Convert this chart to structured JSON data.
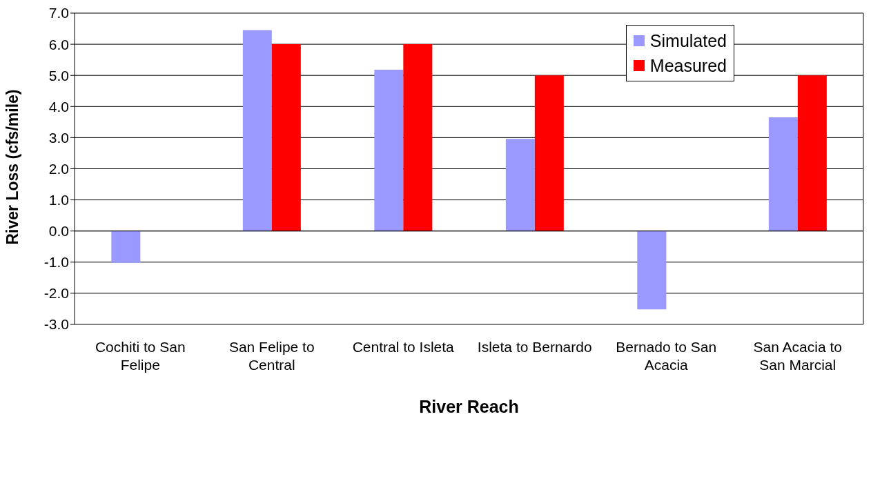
{
  "chart_data": {
    "type": "bar",
    "xlabel": "River Reach",
    "ylabel": "River Loss (cfs/mile)",
    "categories": [
      "Cochiti to San Felipe",
      "San Felipe to Central",
      "Central to Isleta",
      "Isleta to Bernardo",
      "Bernado to San Acacia",
      "San Acacia to San Marcial"
    ],
    "series": [
      {
        "name": "Simulated",
        "color": "#9999ff",
        "values": [
          -1.02,
          6.45,
          5.18,
          2.96,
          -2.52,
          3.65
        ]
      },
      {
        "name": "Measured",
        "color": "#ff0000",
        "values": [
          0,
          6,
          6,
          5,
          0,
          5
        ]
      }
    ],
    "ylim": [
      -3,
      7
    ],
    "yticks": [
      {
        "value": -3,
        "label": "-3.0"
      },
      {
        "value": -2,
        "label": "-2.0"
      },
      {
        "value": -1,
        "label": "-1.0"
      },
      {
        "value": 0,
        "label": "0.0"
      },
      {
        "value": 1,
        "label": "1.0"
      },
      {
        "value": 2,
        "label": "2.0"
      },
      {
        "value": 3,
        "label": "3.0"
      },
      {
        "value": 4,
        "label": "4.0"
      },
      {
        "value": 5,
        "label": "5.0"
      },
      {
        "value": 6,
        "label": "6.0"
      },
      {
        "value": 7,
        "label": "7.0"
      }
    ],
    "grid": "y",
    "legend": "top right"
  }
}
